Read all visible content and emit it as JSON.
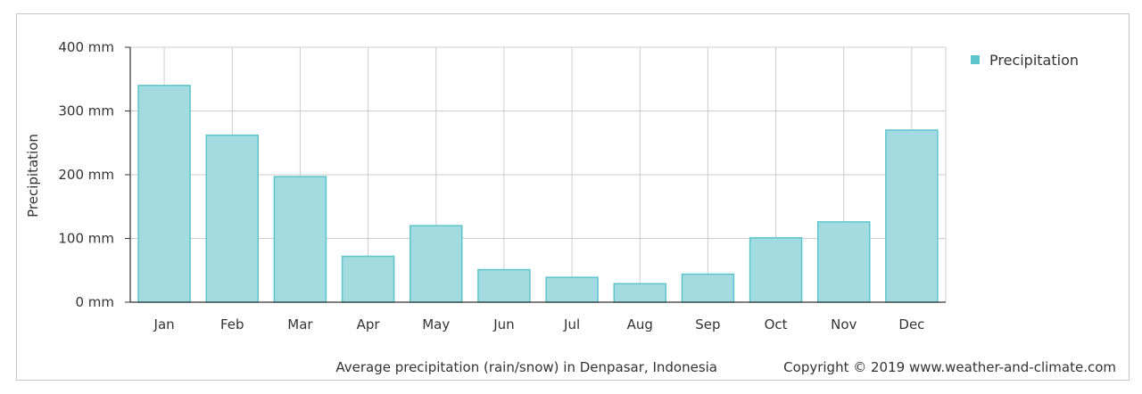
{
  "chart_data": {
    "type": "bar",
    "categories": [
      "Jan",
      "Feb",
      "Mar",
      "Apr",
      "May",
      "Jun",
      "Jul",
      "Aug",
      "Sep",
      "Oct",
      "Nov",
      "Dec"
    ],
    "series": [
      {
        "name": "Precipitation",
        "values": [
          340,
          262,
          197,
          72,
          120,
          51,
          39,
          29,
          44,
          101,
          126,
          270
        ]
      }
    ],
    "ylabel": "Precipitation",
    "xlabel": "",
    "ylim": [
      0,
      400
    ],
    "yticks": [
      0,
      100,
      200,
      300,
      400
    ],
    "ytick_labels": [
      "0 mm",
      "100 mm",
      "200 mm",
      "300 mm",
      "400 mm"
    ],
    "grid": true,
    "legend_position": "top-right",
    "colors": {
      "bar_fill": "#a2dbe0",
      "bar_stroke": "#5ec4cc",
      "legend_marker": "#5ec4cc",
      "grid": "#cccccc",
      "axis": "#333333"
    }
  },
  "caption": {
    "description": "Average precipitation (rain/snow) in Denpasar, Indonesia",
    "copyright": "Copyright © 2019 www.weather-and-climate.com"
  }
}
